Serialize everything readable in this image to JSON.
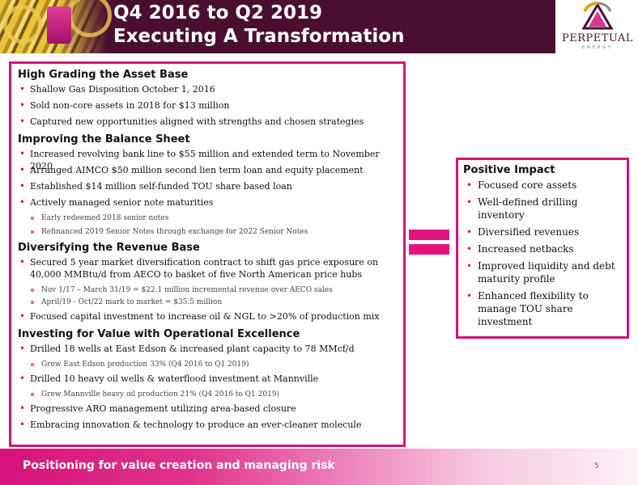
{
  "header": {
    "title_line1": "Q4 2016 to Q2 2019",
    "title_line2": "Executing A Transformation"
  },
  "logo": {
    "name": "PERPETUAL",
    "sub": "ENERGY"
  },
  "sections": [
    {
      "title": "High Grading the Asset Base",
      "items": [
        {
          "text": "Shallow Gas Disposition October 1, 2016",
          "subs": []
        },
        {
          "text": "Sold non-core assets in 2018 for $13 million",
          "subs": []
        },
        {
          "text": "Captured new opportunities aligned with strengths and chosen strategies",
          "subs": []
        }
      ]
    },
    {
      "title": "Improving the Balance Sheet",
      "items": [
        {
          "text": "Increased revolving bank line to $55 million and extended term to November 2020",
          "subs": []
        },
        {
          "text": "Arranged AIMCO $50 million second lien term loan and equity placement",
          "subs": []
        },
        {
          "text": "Established $14 million self-funded TOU share based loan",
          "subs": []
        },
        {
          "text": "Actively managed senior note maturities",
          "subs": [
            "Early redeemed 2018 senior notes",
            "Refinanced 2019 Senior Notes through exchange for 2022 Senior Notes"
          ]
        }
      ]
    },
    {
      "title": "Diversifying the Revenue Base",
      "items": [
        {
          "text": "Secured 5 year market diversification contract to shift gas price exposure on 40,000 MMBtu/d from AECO to basket of five North American price hubs",
          "subs": [
            "Nov 1/17 – March 31/19 = $22.1 million incremental revenue over AECO sales",
            "April/19 - Oct/22 mark to market = $35.5 million"
          ]
        },
        {
          "text": "Focused capital investment to increase oil & NGL to >20% of production mix",
          "subs": []
        }
      ]
    },
    {
      "title": "Investing for Value with Operational Excellence",
      "items": [
        {
          "text": "Drilled 18 wells at East Edson & increased plant capacity to 78 MMcf/d",
          "subs": [
            "Grew East Edson production 33% (Q4 2016 to Q1 2019)"
          ]
        },
        {
          "text": "Drilled 10 heavy oil wells & waterflood investment at Mannville",
          "subs": [
            "Grew Mannville heavy oil production 21% (Q4 2016 to Q1 2019)"
          ]
        },
        {
          "text": "Progressive ARO management utilizing area-based closure",
          "subs": []
        },
        {
          "text": "Embracing innovation & technology to produce an ever-cleaner molecule",
          "subs": []
        }
      ]
    }
  ],
  "impact": {
    "title": "Positive Impact",
    "items": [
      "Focused core assets",
      "Well-defined drilling inventory",
      "Diversified revenues",
      "Increased netbacks",
      "Improved liquidity and debt maturity profile",
      "Enhanced flexibility to manage TOU share investment"
    ]
  },
  "footer": {
    "text": "Positioning for value creation and managing risk",
    "page": "5"
  },
  "colors": {
    "accent": "#d4137a",
    "header_bg": "#4a0f30",
    "logo_orange": "#e8a020"
  }
}
